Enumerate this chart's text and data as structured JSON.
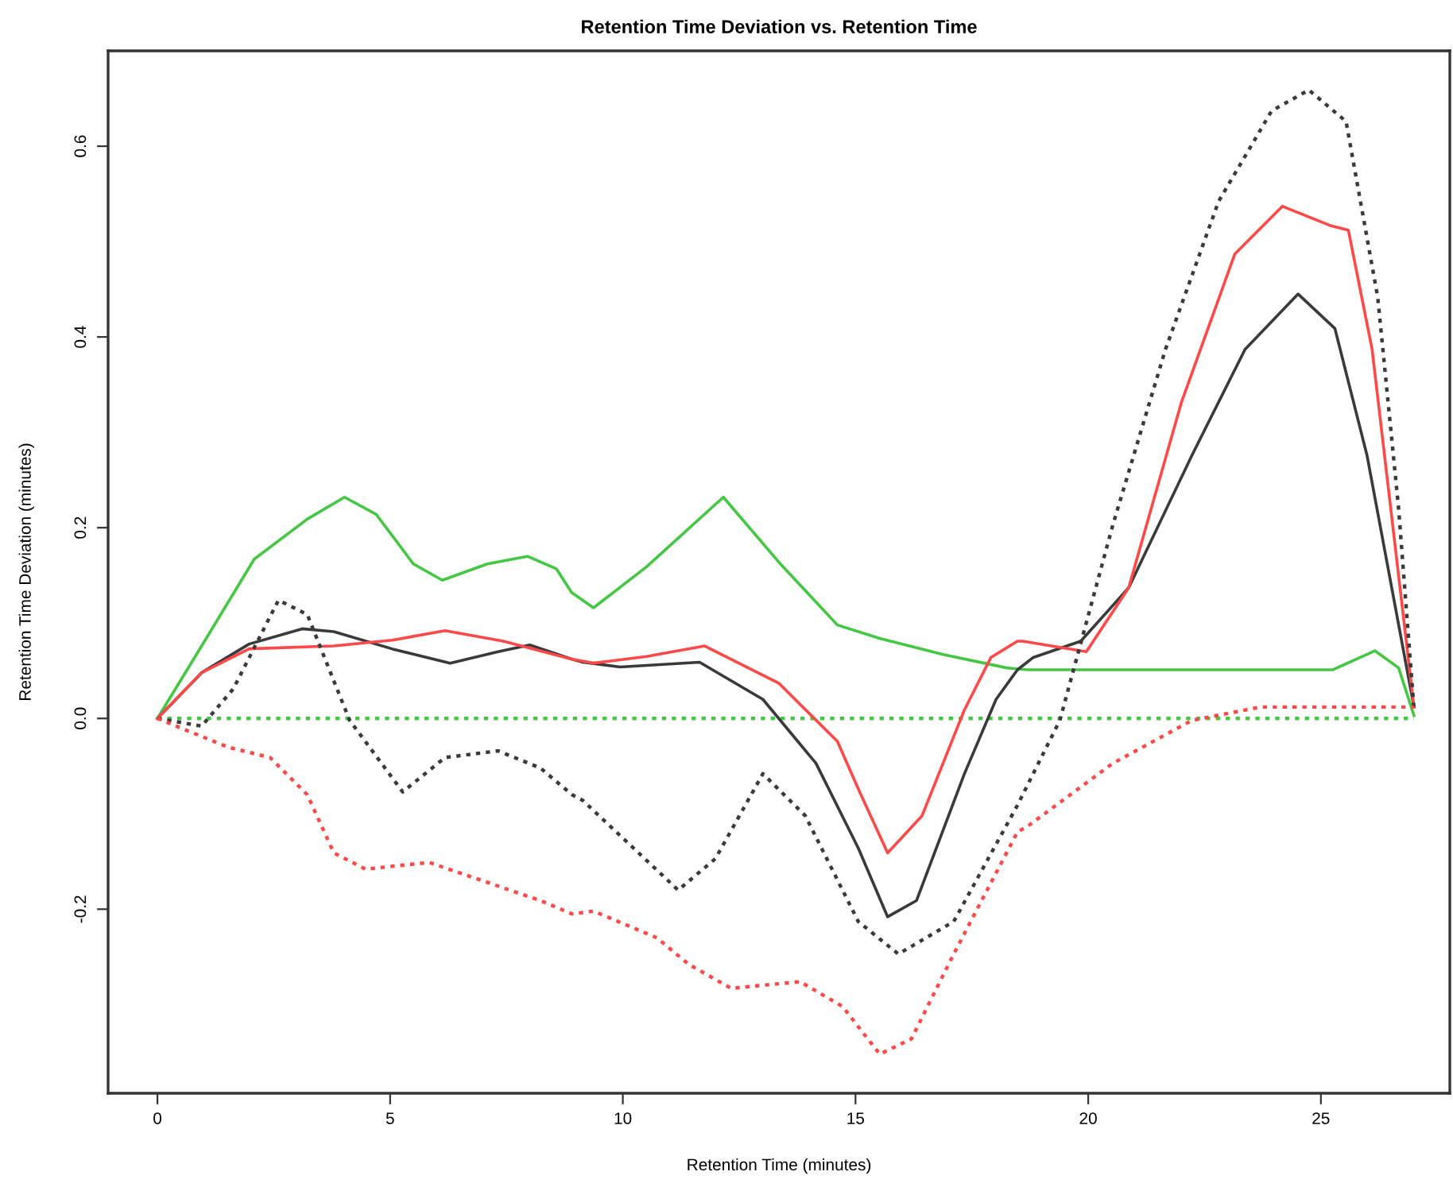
{
  "chart_data": {
    "type": "line",
    "title": "Retention Time Deviation vs. Retention Time",
    "xlabel": "Retention Time (minutes)",
    "ylabel": "Retention Time Deviation (minutes)",
    "xlim": [
      -1.06,
      27.77
    ],
    "ylim": [
      -0.393,
      0.7
    ],
    "xticks": [
      0,
      5,
      10,
      15,
      20,
      25
    ],
    "yticks": [
      {
        "value": -0.2,
        "label": "-0.2"
      },
      {
        "value": 0,
        "label": "0.0"
      },
      {
        "value": 0.2,
        "label": "0.2"
      },
      {
        "value": 0.4,
        "label": "0.4"
      },
      {
        "value": 0.6,
        "label": "0.6"
      }
    ],
    "grid": false,
    "series": [
      {
        "color": "#44c844",
        "line_style": "solid",
        "x": [
          0,
          0.95,
          2.08,
          3.22,
          4.02,
          4.7,
          5.5,
          6.12,
          7.09,
          7.95,
          8.57,
          8.9,
          9.37,
          10.51,
          12.16,
          13.35,
          14.61,
          15.52,
          16.88,
          18.25,
          18.7,
          25.25,
          26.16,
          26.67,
          27.0
        ],
        "values": [
          0,
          0.076,
          0.167,
          0.209,
          0.232,
          0.214,
          0.162,
          0.145,
          0.162,
          0.17,
          0.157,
          0.132,
          0.116,
          0.159,
          0.232,
          0.164,
          0.098,
          0.084,
          0.067,
          0.053,
          0.051,
          0.051,
          0.071,
          0.053,
          0.003
        ]
      },
      {
        "color": "#44c844",
        "line_style": "dotted",
        "x": [
          0,
          27.0
        ],
        "values": [
          0,
          0
        ]
      },
      {
        "color": "#3a3a3a",
        "line_style": "solid",
        "x": [
          0,
          0.95,
          1.97,
          3.11,
          3.79,
          5.04,
          6.29,
          7.32,
          8.0,
          8.91,
          9.14,
          9.94,
          11.65,
          13.01,
          14.15,
          15.06,
          15.69,
          16.31,
          17.34,
          18.02,
          18.48,
          18.82,
          19.84,
          20.87,
          22.23,
          23.37,
          24.51,
          25.3,
          25.99,
          27.0
        ],
        "values": [
          0,
          0.048,
          0.078,
          0.094,
          0.091,
          0.073,
          0.058,
          0.07,
          0.077,
          0.062,
          0.059,
          0.054,
          0.059,
          0.02,
          -0.047,
          -0.136,
          -0.208,
          -0.191,
          -0.058,
          0.02,
          0.051,
          0.064,
          0.081,
          0.137,
          0.276,
          0.387,
          0.445,
          0.409,
          0.276,
          0.012
        ]
      },
      {
        "color": "#ff4848",
        "line_style": "solid",
        "x": [
          0,
          0.95,
          1.97,
          3.79,
          5.04,
          6.18,
          7.43,
          8.91,
          9.37,
          10.51,
          11.76,
          13.35,
          14.61,
          15.06,
          15.69,
          16.43,
          17.34,
          17.91,
          18.48,
          18.59,
          19.96,
          20.87,
          22.0,
          23.15,
          24.17,
          25.19,
          25.59,
          26.1,
          27.0
        ],
        "values": [
          0,
          0.048,
          0.073,
          0.076,
          0.082,
          0.092,
          0.081,
          0.062,
          0.058,
          0.065,
          0.076,
          0.037,
          -0.024,
          -0.074,
          -0.141,
          -0.102,
          0.009,
          0.064,
          0.081,
          0.081,
          0.07,
          0.137,
          0.331,
          0.487,
          0.537,
          0.517,
          0.512,
          0.387,
          0.012
        ]
      },
      {
        "color": "#3a3a3a",
        "line_style": "dotted",
        "x": [
          0,
          0.95,
          1.63,
          2.6,
          3.22,
          4.13,
          5.27,
          6.18,
          7.32,
          8.23,
          8.91,
          9.14,
          11.19,
          11.99,
          13.01,
          13.92,
          15.06,
          15.92,
          17.11,
          18.48,
          19.39,
          20.53,
          21.66,
          22.8,
          23.94,
          24.74,
          25.54,
          26.22,
          26.67,
          27.0
        ],
        "values": [
          0,
          -0.008,
          0.031,
          0.124,
          0.109,
          -0.002,
          -0.077,
          -0.041,
          -0.034,
          -0.052,
          -0.08,
          -0.086,
          -0.18,
          -0.147,
          -0.058,
          -0.102,
          -0.213,
          -0.247,
          -0.213,
          -0.091,
          -0.002,
          0.203,
          0.387,
          0.542,
          0.637,
          0.659,
          0.626,
          0.442,
          0.22,
          0.01
        ]
      },
      {
        "color": "#ff4848",
        "line_style": "dotted",
        "x": [
          0,
          1.51,
          2.42,
          3.22,
          3.79,
          4.47,
          5.84,
          8.23,
          8.91,
          9.37,
          10.73,
          11.42,
          12.33,
          13.81,
          14.72,
          15.52,
          16.2,
          17.11,
          18.48,
          18.7,
          20.53,
          22.23,
          23.71,
          27.0
        ],
        "values": [
          0,
          -0.03,
          -0.041,
          -0.08,
          -0.141,
          -0.158,
          -0.151,
          -0.191,
          -0.205,
          -0.202,
          -0.23,
          -0.258,
          -0.283,
          -0.276,
          -0.302,
          -0.352,
          -0.336,
          -0.247,
          -0.119,
          -0.113,
          -0.047,
          -0.002,
          0.012,
          0.012
        ]
      }
    ]
  }
}
